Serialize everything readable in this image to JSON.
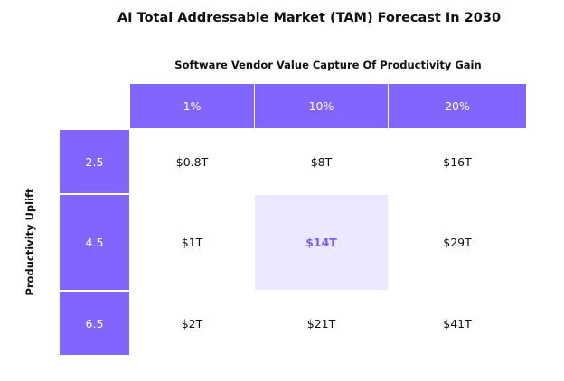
{
  "chart_data": {
    "type": "table",
    "title": "AI Total Addressable Market (TAM) Forecast In 2030",
    "column_title": "Software Vendor Value Capture Of Productivity Gain",
    "row_title": "Productivity Uplift",
    "columns": [
      "1%",
      "10%",
      "20%"
    ],
    "rows": [
      "2.5",
      "4.5",
      "6.5"
    ],
    "cells": [
      [
        "$0.8T",
        "$8T",
        "$16T"
      ],
      [
        "$1T",
        "$14T",
        "$29T"
      ],
      [
        "$2T",
        "$21T",
        "$41T"
      ]
    ],
    "highlighted_cell": {
      "row": 1,
      "col": 1
    },
    "colors": {
      "header": "#8264ff",
      "highlight_bg": "#ece8ff",
      "highlight_text": "#7d5cf5"
    }
  }
}
